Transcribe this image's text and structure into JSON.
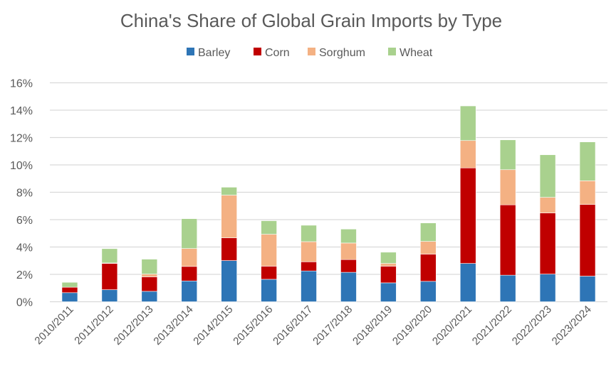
{
  "chart_data": {
    "type": "bar",
    "stacked": true,
    "title": "China's Share of Global Grain Imports by Type",
    "xlabel": "",
    "ylabel": "",
    "ylim": [
      0,
      16
    ],
    "yticks": [
      "0%",
      "2%",
      "4%",
      "6%",
      "8%",
      "10%",
      "12%",
      "14%",
      "16%"
    ],
    "grid": true,
    "legend_position": "top",
    "categories": [
      "2010/2011",
      "2011/2012",
      "2012/2013",
      "2013/2014",
      "2014/2015",
      "2015/2016",
      "2016/2017",
      "2017/2018",
      "2018/2019",
      "2019/2020",
      "2020/2021",
      "2021/2022",
      "2022/2023",
      "2023/2024"
    ],
    "series": [
      {
        "name": "Barley",
        "color": "#2E75B6",
        "values": [
          0.66,
          0.88,
          0.76,
          1.52,
          3.01,
          1.64,
          2.25,
          2.15,
          1.38,
          1.49,
          2.8,
          1.94,
          2.02,
          1.87
        ]
      },
      {
        "name": "Corn",
        "color": "#C00000",
        "values": [
          0.4,
          1.92,
          1.06,
          1.06,
          1.66,
          0.96,
          0.67,
          0.93,
          1.22,
          1.99,
          6.98,
          5.14,
          4.47,
          5.24
        ]
      },
      {
        "name": "Sorghum",
        "color": "#F4B183",
        "values": [
          0.0,
          0.03,
          0.2,
          1.31,
          3.12,
          2.33,
          1.47,
          1.21,
          0.2,
          0.93,
          2.0,
          2.57,
          1.14,
          1.73
        ]
      },
      {
        "name": "Wheat",
        "color": "#A9D18E",
        "values": [
          0.36,
          1.05,
          1.09,
          2.18,
          0.58,
          0.99,
          1.2,
          1.02,
          0.82,
          1.35,
          2.53,
          2.18,
          3.11,
          2.84
        ]
      }
    ]
  }
}
